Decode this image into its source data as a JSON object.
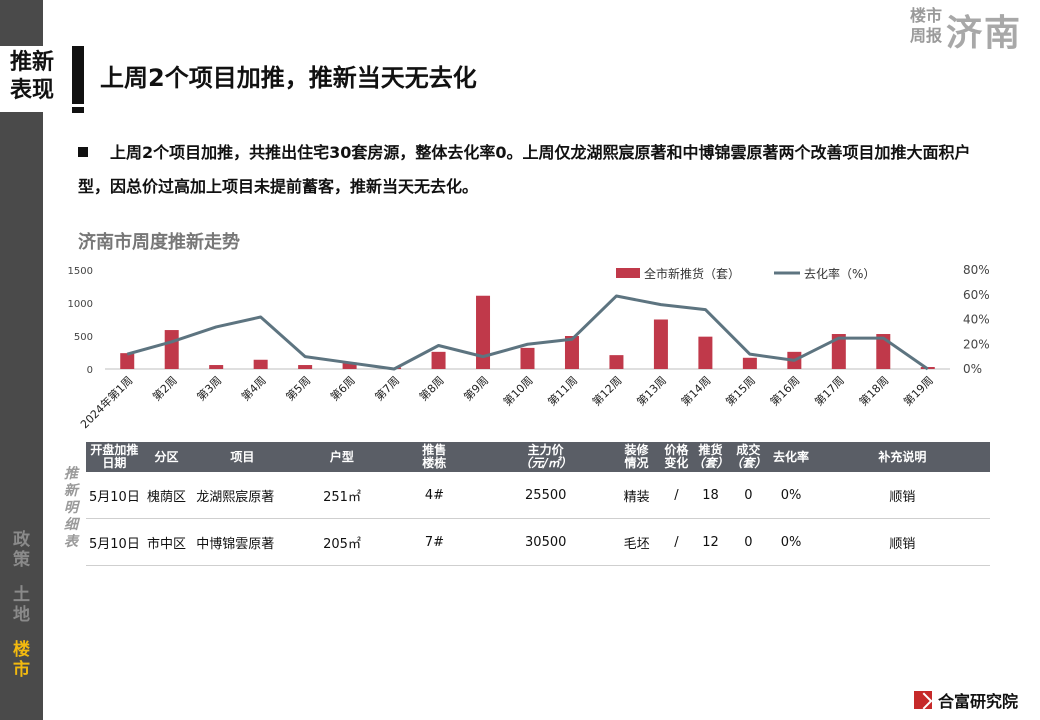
{
  "brand": {
    "small_line1": "楼市",
    "small_line2": "周报",
    "city": "济南"
  },
  "section_tag": {
    "line1": "推新",
    "line2": "表现"
  },
  "page_title": "上周2个项目加推，推新当天无去化",
  "summary": "上周2个项目加推，共推出住宅30套房源，整体去化率0。上周仅龙湖熙宸原著和中博锦雲原著两个改善项目加推大面积户型，因总价过高加上项目未提前蓄客，推新当天无去化。",
  "side_nav": {
    "policy": [
      "政",
      "策"
    ],
    "land": [
      "土",
      "地"
    ],
    "market": [
      "楼",
      "市"
    ]
  },
  "chart_title": "济南市周度推新走势",
  "chart_data": {
    "type": "bar",
    "categories": [
      "2024年第1周",
      "第2周",
      "第3周",
      "第4周",
      "第5周",
      "第6周",
      "第7周",
      "第8周",
      "第9周",
      "第10周",
      "第11周",
      "第12周",
      "第13周",
      "第14周",
      "第15周",
      "第16周",
      "第17周",
      "第18周",
      "第19周"
    ],
    "series": [
      {
        "name": "全市新推货（套）",
        "type": "bar",
        "axis": "left",
        "color": "#c0394a",
        "values": [
          240,
          590,
          60,
          140,
          60,
          100,
          0,
          260,
          1110,
          320,
          500,
          210,
          750,
          490,
          170,
          260,
          530,
          530,
          30
        ]
      },
      {
        "name": "去化率（%）",
        "type": "line",
        "axis": "right",
        "color": "#5d7480",
        "values": [
          12,
          22,
          34,
          42,
          10,
          5,
          0,
          19,
          10,
          20,
          24,
          59,
          52,
          48,
          12,
          7,
          25,
          25,
          0
        ]
      }
    ],
    "y_left": {
      "ylim": [
        0,
        1500
      ],
      "ticks": [
        "0",
        "500",
        "1000",
        "1500"
      ]
    },
    "y_right": {
      "ylim": [
        0,
        80
      ],
      "ticks": [
        "0%",
        "20%",
        "40%",
        "60%",
        "80%"
      ]
    },
    "legend": "top-right"
  },
  "table": {
    "side_label": [
      "推",
      "新",
      "明",
      "细",
      "表"
    ],
    "headers": [
      {
        "main": "开盘加推",
        "sub": "日期"
      },
      {
        "main": "分区",
        "sub": ""
      },
      {
        "main": "项目",
        "sub": ""
      },
      {
        "main": "户型",
        "sub": ""
      },
      {
        "main": "推售",
        "sub": "楼栋"
      },
      {
        "main": "主力价",
        "sub": "（元/㎡）"
      },
      {
        "main": "装修",
        "sub": "情况"
      },
      {
        "main": "价格",
        "sub": "变化"
      },
      {
        "main": "推货",
        "sub": "（套）"
      },
      {
        "main": "成交",
        "sub": "（套）"
      },
      {
        "main": "去化率",
        "sub": ""
      },
      {
        "main": "补充说明",
        "sub": ""
      }
    ],
    "rows": [
      [
        "5月10日",
        "槐荫区",
        "龙湖熙宸原著",
        "251㎡",
        "4#",
        "25500",
        "精装",
        "/",
        "18",
        "0",
        "0%",
        "顺销"
      ],
      [
        "5月10日",
        "市中区",
        "中博锦雲原著",
        "205㎡",
        "7#",
        "30500",
        "毛坯",
        "/",
        "12",
        "0",
        "0%",
        "顺销"
      ]
    ]
  },
  "footer_brand": "合富研究院"
}
